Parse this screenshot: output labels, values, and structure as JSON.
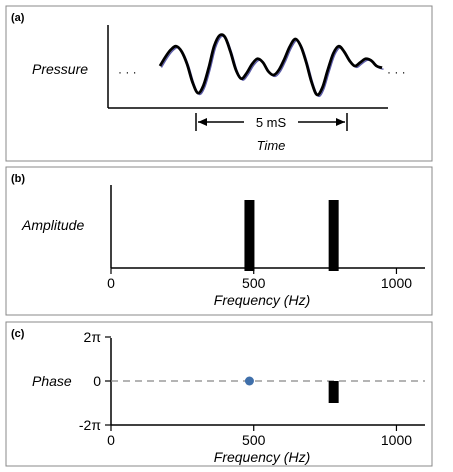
{
  "panels": [
    {
      "label": "(a)"
    },
    {
      "label": "(b)"
    },
    {
      "label": "(c)"
    }
  ],
  "colors": {
    "waveform": "#000000",
    "waveform_overlay": "#5a5aaa",
    "phase_point": "#3f6faa",
    "bars": "#000000",
    "dashed_zero_line": "#888888"
  },
  "chart_data": [
    {
      "type": "line",
      "panel": "(a)",
      "ylabel": "Pressure",
      "xlabel": "Time",
      "annotation": "5 mS",
      "leading_dots": "· · ·",
      "trailing_dots": "· · ·",
      "series": [
        {
          "values": [
            0.0,
            0.25,
            0.45,
            0.55,
            0.4,
            0.05,
            -0.45,
            -0.75,
            -0.55,
            -0.05,
            0.55,
            0.85,
            0.8,
            0.4,
            -0.1,
            -0.35,
            -0.2,
            0.05,
            0.2,
            0.1,
            -0.15,
            -0.25,
            -0.1,
            0.2,
            0.55,
            0.75,
            0.55,
            0.1,
            -0.45,
            -0.8,
            -0.6,
            -0.1,
            0.35,
            0.55,
            0.4,
            0.15,
            0.0,
            0.1,
            0.2,
            0.15,
            0.0,
            -0.05
          ]
        }
      ]
    },
    {
      "type": "bar",
      "panel": "(b)",
      "ylabel": "Amplitude",
      "xlabel": "Frequency (Hz)",
      "xlim": [
        0,
        1100
      ],
      "xticks": [
        0,
        500,
        1000
      ],
      "x": [
        485,
        780
      ],
      "values": [
        1,
        1
      ]
    },
    {
      "type": "scatter",
      "panel": "(c)",
      "ylabel": "Phase",
      "xlabel": "Frequency (Hz)",
      "xlim": [
        0,
        1100
      ],
      "xticks": [
        0,
        500,
        1000
      ],
      "yticks": [
        "2π",
        "0",
        "-2π"
      ],
      "ylim": [
        -2,
        2
      ],
      "points": [
        {
          "x": 485,
          "y": 0
        }
      ],
      "bars": [
        {
          "x": 780,
          "y0": 0,
          "y1": -1
        }
      ]
    }
  ]
}
